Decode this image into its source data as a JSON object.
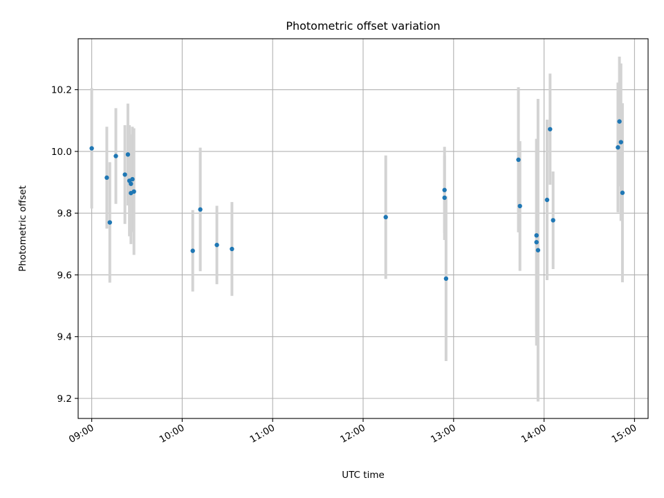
{
  "chart_data": {
    "type": "scatter",
    "title": "Photometric offset variation",
    "xlabel": "UTC time",
    "ylabel": "Photometric offset",
    "x_unit": "time of day (UTC)",
    "xlim": [
      "08:51",
      "15:09"
    ],
    "ylim": [
      9.135,
      10.365
    ],
    "x_ticks": [
      "09:00",
      "10:00",
      "11:00",
      "12:00",
      "13:00",
      "14:00",
      "15:00"
    ],
    "y_ticks": [
      9.2,
      9.4,
      9.6,
      9.8,
      10.0,
      10.2
    ],
    "y_tick_labels": [
      "9.2",
      "9.4",
      "9.6",
      "9.8",
      "10.0",
      "10.2"
    ],
    "grid": true,
    "legend": null,
    "colors": {
      "marker": "#1f77b4",
      "errorbar": "#d3d3d3",
      "grid": "#b0b0b0"
    },
    "series": [
      {
        "marker": "dot",
        "errorbars": true,
        "points": [
          {
            "x": "09:00",
            "y": 10.01,
            "err": 0.195
          },
          {
            "x": "09:10",
            "y": 9.915,
            "err": 0.165
          },
          {
            "x": "09:12",
            "y": 9.77,
            "err": 0.195
          },
          {
            "x": "09:16",
            "y": 9.985,
            "err": 0.155
          },
          {
            "x": "09:22",
            "y": 9.925,
            "err": 0.16
          },
          {
            "x": "09:24",
            "y": 9.99,
            "err": 0.165
          },
          {
            "x": "09:25",
            "y": 9.905,
            "err": 0.18
          },
          {
            "x": "09:26",
            "y": 9.895,
            "err": 0.16
          },
          {
            "x": "09:26",
            "y": 9.865,
            "err": 0.165
          },
          {
            "x": "09:27",
            "y": 9.91,
            "err": 0.17
          },
          {
            "x": "09:28",
            "y": 9.87,
            "err": 0.205
          },
          {
            "x": "10:07",
            "y": 9.678,
            "err": 0.132
          },
          {
            "x": "10:12",
            "y": 9.812,
            "err": 0.2
          },
          {
            "x": "10:23",
            "y": 9.697,
            "err": 0.127
          },
          {
            "x": "10:33",
            "y": 9.684,
            "err": 0.152
          },
          {
            "x": "12:15",
            "y": 9.787,
            "err": 0.2
          },
          {
            "x": "12:54",
            "y": 9.875,
            "err": 0.14
          },
          {
            "x": "12:54",
            "y": 9.85,
            "err": 0.137
          },
          {
            "x": "12:55",
            "y": 9.588,
            "err": 0.267
          },
          {
            "x": "13:43",
            "y": 9.973,
            "err": 0.235
          },
          {
            "x": "13:44",
            "y": 9.823,
            "err": 0.21
          },
          {
            "x": "13:55",
            "y": 9.728,
            "err": 0.31
          },
          {
            "x": "13:55",
            "y": 9.706,
            "err": 0.335
          },
          {
            "x": "13:56",
            "y": 9.68,
            "err": 0.49
          },
          {
            "x": "14:02",
            "y": 9.843,
            "err": 0.26
          },
          {
            "x": "14:04",
            "y": 10.072,
            "err": 0.18
          },
          {
            "x": "14:06",
            "y": 9.777,
            "err": 0.158
          },
          {
            "x": "14:49",
            "y": 10.013,
            "err": 0.21
          },
          {
            "x": "14:50",
            "y": 10.097,
            "err": 0.21
          },
          {
            "x": "14:51",
            "y": 10.03,
            "err": 0.255
          },
          {
            "x": "14:52",
            "y": 9.866,
            "err": 0.29
          }
        ]
      }
    ]
  }
}
